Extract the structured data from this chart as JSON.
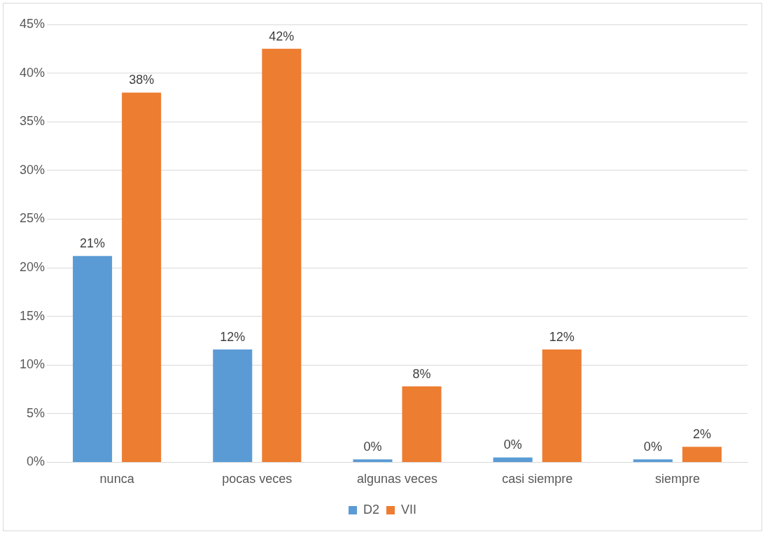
{
  "chart_data": {
    "type": "bar",
    "categories": [
      "nunca",
      "pocas veces",
      "algunas veces",
      "casi siempre",
      "siempre"
    ],
    "series": [
      {
        "name": "D2",
        "color": "#5b9bd5",
        "values": [
          21.2,
          11.6,
          0.3,
          0.5,
          0.3
        ],
        "value_labels": [
          "21%",
          "12%",
          "0%",
          "0%",
          "0%"
        ]
      },
      {
        "name": "VII",
        "color": "#ed7d31",
        "values": [
          38.0,
          42.5,
          7.8,
          11.6,
          1.6
        ],
        "value_labels": [
          "38%",
          "42%",
          "8%",
          "12%",
          "2%"
        ]
      }
    ],
    "ylim": [
      0,
      45
    ],
    "yticks": [
      {
        "value": 0,
        "label": "0%"
      },
      {
        "value": 5,
        "label": "5%"
      },
      {
        "value": 10,
        "label": "10%"
      },
      {
        "value": 15,
        "label": "15%"
      },
      {
        "value": 20,
        "label": "20%"
      },
      {
        "value": 25,
        "label": "25%"
      },
      {
        "value": 30,
        "label": "30%"
      },
      {
        "value": 35,
        "label": "35%"
      },
      {
        "value": 40,
        "label": "40%"
      },
      {
        "value": 45,
        "label": "45%"
      }
    ],
    "grid": "y",
    "legend": "bottom"
  }
}
